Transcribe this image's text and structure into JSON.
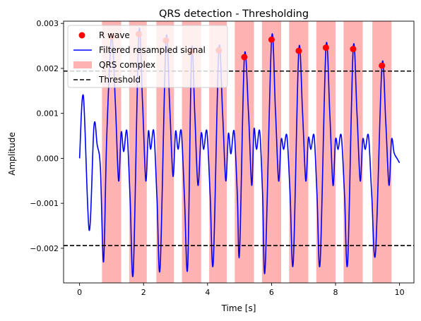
{
  "chart_data": {
    "type": "line",
    "title": "QRS detection - Thresholding",
    "xlabel": "Time [s]",
    "ylabel": "Amplitude",
    "xlim": [
      -0.5,
      10.45
    ],
    "ylim": [
      -0.00277,
      0.00305
    ],
    "xticks": [
      0,
      2,
      4,
      6,
      8,
      10
    ],
    "xtick_labels": [
      "0",
      "2",
      "4",
      "6",
      "8",
      "10"
    ],
    "yticks": [
      -0.002,
      -0.001,
      0.0,
      0.001,
      0.002,
      0.003
    ],
    "ytick_labels": [
      "−0.002",
      "−0.001",
      "0.000",
      "0.001",
      "0.002",
      "0.003"
    ],
    "legend": {
      "position": "top-left",
      "entries": [
        "R wave",
        "Filtered resampled signal",
        "QRS complex",
        "Threshold"
      ]
    },
    "qrs_windows": [
      [
        0.7,
        1.3
      ],
      [
        1.55,
        2.1
      ],
      [
        2.4,
        2.95
      ],
      [
        3.2,
        3.8
      ],
      [
        4.05,
        4.6
      ],
      [
        4.85,
        5.45
      ],
      [
        5.7,
        6.3
      ],
      [
        6.55,
        7.15
      ],
      [
        7.4,
        8.0
      ],
      [
        8.25,
        8.85
      ],
      [
        9.15,
        9.75
      ]
    ],
    "r_waves": {
      "x": [
        1.0,
        1.85,
        2.7,
        3.5,
        4.35,
        5.15,
        6.0,
        6.85,
        7.7,
        8.55,
        9.45
      ],
      "y": [
        0.00271,
        0.00276,
        0.00262,
        0.00237,
        0.0024,
        0.00225,
        0.00264,
        0.00239,
        0.00246,
        0.00243,
        0.00206
      ]
    },
    "thresholds": [
      0.00194,
      -0.00194
    ],
    "signal": {
      "x": [
        0,
        0.12,
        0.3,
        0.45,
        0.55,
        0.65,
        0.75,
        0.85,
        1.0,
        1.12,
        1.22,
        1.3,
        1.38,
        1.48,
        1.58,
        1.68,
        1.85,
        1.97,
        2.07,
        2.15,
        2.22,
        2.32,
        2.42,
        2.52,
        2.7,
        2.82,
        2.92,
        3.0,
        3.08,
        3.18,
        3.28,
        3.38,
        3.5,
        3.6,
        3.7,
        3.8,
        3.88,
        3.98,
        4.08,
        4.18,
        4.35,
        4.47,
        4.57,
        4.65,
        4.73,
        4.83,
        4.93,
        5.0,
        5.15,
        5.28,
        5.38,
        5.45,
        5.53,
        5.63,
        5.72,
        5.8,
        6.0,
        6.12,
        6.22,
        6.3,
        6.38,
        6.48,
        6.58,
        6.68,
        6.85,
        6.97,
        7.07,
        7.15,
        7.23,
        7.33,
        7.42,
        7.52,
        7.7,
        7.82,
        7.92,
        8.0,
        8.08,
        8.18,
        8.28,
        8.38,
        8.55,
        8.67,
        8.77,
        8.85,
        8.93,
        9.03,
        9.13,
        9.25,
        9.45,
        9.57,
        9.67,
        9.75,
        9.83,
        9.92,
        10.0
      ],
      "y": [
        0.0,
        0.00138,
        -0.0016,
        0.00072,
        0.0003,
        -0.0002,
        -0.0023,
        0.0005,
        0.00271,
        0.0012,
        -0.0005,
        0.00058,
        0.00015,
        0.0006,
        -0.0009,
        -0.0025,
        0.00276,
        0.0012,
        -0.0005,
        0.0006,
        0.0002,
        0.0006,
        -0.0009,
        -0.0024,
        0.00262,
        0.0011,
        -0.0004,
        0.0006,
        0.0002,
        0.0006,
        -0.0009,
        -0.0024,
        0.00237,
        0.001,
        -0.0006,
        0.00055,
        0.0002,
        0.0006,
        -0.0008,
        -0.0023,
        0.0024,
        0.001,
        -0.0005,
        0.00055,
        0.0001,
        0.0006,
        -0.0008,
        -0.0021,
        0.00225,
        0.001,
        -0.0006,
        0.00065,
        0.0002,
        0.0006,
        -0.0008,
        -0.00245,
        0.00264,
        0.0011,
        -0.0005,
        0.00042,
        0.0002,
        0.0005,
        -0.0008,
        -0.0023,
        0.00239,
        0.001,
        -0.0005,
        0.00045,
        0.0002,
        0.0005,
        -0.0008,
        -0.0023,
        0.00246,
        0.001,
        -0.0006,
        0.00042,
        0.0002,
        0.0005,
        -0.0008,
        -0.0023,
        0.00243,
        0.001,
        -0.0005,
        0.00042,
        0.0002,
        0.0005,
        -0.0008,
        -0.0021,
        0.00206,
        0.0008,
        -0.0006,
        0.00042,
        0.00012,
        0.0,
        -0.0001
      ]
    },
    "colors": {
      "signal": "#0000ff",
      "r_wave": "#ff0000",
      "qrs": "#ff0000",
      "threshold": "#000000"
    }
  }
}
